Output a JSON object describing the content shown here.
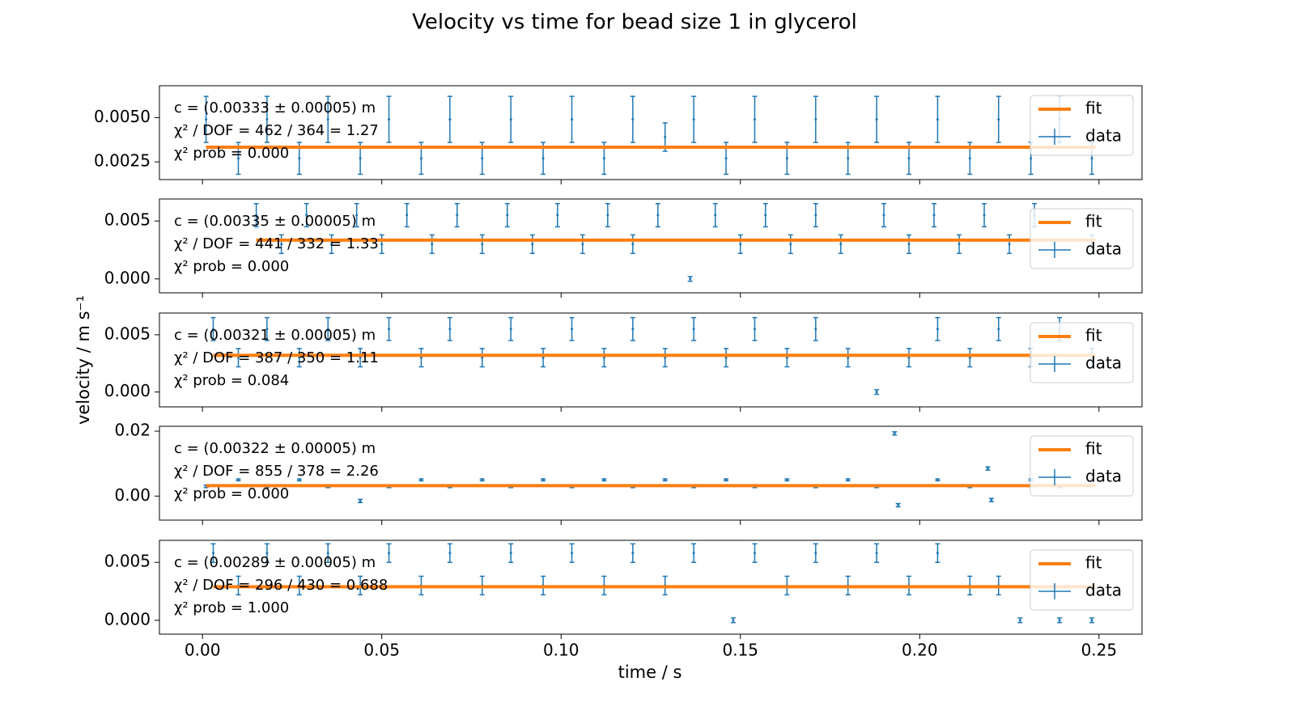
{
  "figure": {
    "title": "Velocity vs time for bead size 1 in glycerol",
    "xlabel": "time / s",
    "ylabel": "velocity / m s⁻¹"
  },
  "chart_data": [
    {
      "type": "errorbar",
      "legend": "upper right",
      "annotations": [
        "c = (0.00333 ± 0.00005) m",
        "χ² / DOF = 462 / 364 = 1.27",
        "χ² prob = 0.000"
      ],
      "xlim": [
        -0.012,
        0.262
      ],
      "xticks": [
        {
          "value": 0,
          "label": "0.00"
        },
        {
          "value": 0.05,
          "label": "0.05"
        },
        {
          "value": 0.1,
          "label": "0.10"
        },
        {
          "value": 0.15,
          "label": "0.15"
        },
        {
          "value": 0.2,
          "label": "0.20"
        },
        {
          "value": 0.25,
          "label": "0.25"
        }
      ],
      "ylim": [
        0.0015,
        0.0068
      ],
      "yticks": [
        {
          "value": 0.0025,
          "label": "0.0025"
        },
        {
          "value": 0.005,
          "label": "0.0050"
        }
      ],
      "series": [
        {
          "name": "data",
          "color": "#1f77b4",
          "x": [
            0.001,
            0.01,
            0.018,
            0.027,
            0.035,
            0.044,
            0.052,
            0.061,
            0.069,
            0.078,
            0.086,
            0.095,
            0.103,
            0.112,
            0.12,
            0.129,
            0.137,
            0.146,
            0.154,
            0.163,
            0.171,
            0.18,
            0.188,
            0.197,
            0.205,
            0.214,
            0.222,
            0.231,
            0.239,
            0.248
          ],
          "values": [
            0.0049,
            0.0027,
            0.0049,
            0.0027,
            0.0049,
            0.0027,
            0.0049,
            0.0027,
            0.0049,
            0.0027,
            0.0049,
            0.0027,
            0.0049,
            0.0027,
            0.0049,
            0.0039,
            0.0049,
            0.0027,
            0.0049,
            0.0027,
            0.0049,
            0.0027,
            0.0049,
            0.0027,
            0.0049,
            0.0027,
            0.0049,
            0.0027,
            0.0049,
            0.0027
          ],
          "errors": [
            0.0013,
            0.0009,
            0.0013,
            0.0009,
            0.0013,
            0.0009,
            0.0013,
            0.0009,
            0.0013,
            0.0009,
            0.0013,
            0.0009,
            0.0013,
            0.0009,
            0.0013,
            0.0008,
            0.0013,
            0.0009,
            0.0013,
            0.0009,
            0.0013,
            0.0009,
            0.0013,
            0.0009,
            0.0013,
            0.0009,
            0.0013,
            0.0009,
            0.0013,
            0.0009
          ]
        },
        {
          "name": "fit",
          "color": "#ff7f0e",
          "x": [
            0.001,
            0.249
          ],
          "values": [
            0.00333,
            0.00333
          ]
        }
      ]
    },
    {
      "type": "errorbar",
      "legend": "upper right",
      "annotations": [
        "c = (0.00335 ± 0.00005) m",
        "χ² / DOF = 441 / 332 = 1.33",
        "χ² prob = 0.000"
      ],
      "xlim": [
        -0.012,
        0.262
      ],
      "xticks": [
        {
          "value": 0,
          "label": "0.00"
        },
        {
          "value": 0.05,
          "label": "0.05"
        },
        {
          "value": 0.1,
          "label": "0.10"
        },
        {
          "value": 0.15,
          "label": "0.15"
        },
        {
          "value": 0.2,
          "label": "0.20"
        },
        {
          "value": 0.25,
          "label": "0.25"
        }
      ],
      "ylim": [
        -0.0012,
        0.0069
      ],
      "yticks": [
        {
          "value": 0,
          "label": "0.000"
        },
        {
          "value": 0.005,
          "label": "0.005"
        }
      ],
      "series": [
        {
          "name": "data",
          "color": "#1f77b4",
          "x": [
            0.015,
            0.022,
            0.029,
            0.036,
            0.043,
            0.05,
            0.057,
            0.064,
            0.071,
            0.078,
            0.085,
            0.092,
            0.099,
            0.106,
            0.113,
            0.12,
            0.127,
            0.136,
            0.143,
            0.15,
            0.157,
            0.164,
            0.171,
            0.178,
            0.19,
            0.197,
            0.204,
            0.211,
            0.218,
            0.225,
            0.232,
            0.248
          ],
          "values": [
            0.0055,
            0.003,
            0.0055,
            0.003,
            0.0055,
            0.003,
            0.0055,
            0.003,
            0.0055,
            0.003,
            0.0055,
            0.003,
            0.0055,
            0.003,
            0.0055,
            0.003,
            0.0055,
            0.0,
            0.0055,
            0.003,
            0.0055,
            0.003,
            0.0055,
            0.003,
            0.0055,
            0.003,
            0.0055,
            0.003,
            0.0055,
            0.003,
            0.0055,
            0.003
          ],
          "errors": [
            0.001,
            0.0008,
            0.001,
            0.0008,
            0.001,
            0.0008,
            0.001,
            0.0008,
            0.001,
            0.0008,
            0.001,
            0.0008,
            0.001,
            0.0008,
            0.001,
            0.0008,
            0.001,
            0.0002,
            0.001,
            0.0008,
            0.001,
            0.0008,
            0.001,
            0.0008,
            0.001,
            0.0008,
            0.001,
            0.0008,
            0.001,
            0.0008,
            0.001,
            0.0008
          ]
        },
        {
          "name": "fit",
          "color": "#ff7f0e",
          "x": [
            0.015,
            0.249
          ],
          "values": [
            0.00335,
            0.00335
          ]
        }
      ]
    },
    {
      "type": "errorbar",
      "legend": "upper right",
      "annotations": [
        "c = (0.00321 ± 0.00005) m",
        "χ² / DOF = 387 / 350 = 1.11",
        "χ² prob = 0.084"
      ],
      "xlim": [
        -0.012,
        0.262
      ],
      "xticks": [
        {
          "value": 0,
          "label": "0.00"
        },
        {
          "value": 0.05,
          "label": "0.05"
        },
        {
          "value": 0.1,
          "label": "0.10"
        },
        {
          "value": 0.15,
          "label": "0.15"
        },
        {
          "value": 0.2,
          "label": "0.20"
        },
        {
          "value": 0.25,
          "label": "0.25"
        }
      ],
      "ylim": [
        -0.0013,
        0.0069
      ],
      "yticks": [
        {
          "value": 0,
          "label": "0.000"
        },
        {
          "value": 0.005,
          "label": "0.005"
        }
      ],
      "series": [
        {
          "name": "data",
          "color": "#1f77b4",
          "x": [
            0.003,
            0.01,
            0.018,
            0.027,
            0.035,
            0.044,
            0.052,
            0.061,
            0.069,
            0.078,
            0.086,
            0.095,
            0.103,
            0.112,
            0.12,
            0.129,
            0.137,
            0.146,
            0.154,
            0.163,
            0.171,
            0.18,
            0.188,
            0.197,
            0.205,
            0.214,
            0.222,
            0.231,
            0.239,
            0.248
          ],
          "values": [
            0.0055,
            0.003,
            0.0055,
            0.003,
            0.0055,
            0.003,
            0.0055,
            0.003,
            0.0055,
            0.003,
            0.0055,
            0.003,
            0.0055,
            0.003,
            0.0055,
            0.003,
            0.0055,
            0.003,
            0.0055,
            0.003,
            0.0055,
            0.003,
            0.0,
            0.003,
            0.0055,
            0.003,
            0.0055,
            0.003,
            0.0055,
            0.003
          ],
          "errors": [
            0.001,
            0.0008,
            0.001,
            0.0008,
            0.001,
            0.0008,
            0.001,
            0.0008,
            0.001,
            0.0008,
            0.001,
            0.0008,
            0.001,
            0.0008,
            0.001,
            0.0008,
            0.001,
            0.0008,
            0.001,
            0.0008,
            0.001,
            0.0008,
            0.0002,
            0.0008,
            0.001,
            0.0008,
            0.001,
            0.0008,
            0.001,
            0.0008
          ]
        },
        {
          "name": "fit",
          "color": "#ff7f0e",
          "x": [
            0.003,
            0.249
          ],
          "values": [
            0.00321,
            0.00321
          ]
        }
      ]
    },
    {
      "type": "errorbar",
      "legend": "upper right",
      "annotations": [
        "c = (0.00322 ± 0.00005) m",
        "χ² / DOF = 855 / 378 = 2.26",
        "χ² prob = 0.000"
      ],
      "xlim": [
        -0.012,
        0.262
      ],
      "xticks": [
        {
          "value": 0,
          "label": "0.00"
        },
        {
          "value": 0.05,
          "label": "0.05"
        },
        {
          "value": 0.1,
          "label": "0.10"
        },
        {
          "value": 0.15,
          "label": "0.15"
        },
        {
          "value": 0.2,
          "label": "0.20"
        },
        {
          "value": 0.25,
          "label": "0.25"
        }
      ],
      "ylim": [
        -0.0074,
        0.0215
      ],
      "yticks": [
        {
          "value": 0,
          "label": "0.00"
        },
        {
          "value": 0.02,
          "label": "0.02"
        }
      ],
      "series": [
        {
          "name": "data",
          "color": "#1f77b4",
          "x": [
            0.001,
            0.01,
            0.018,
            0.027,
            0.035,
            0.044,
            0.052,
            0.061,
            0.069,
            0.078,
            0.086,
            0.095,
            0.103,
            0.112,
            0.12,
            0.129,
            0.137,
            0.146,
            0.154,
            0.163,
            0.171,
            0.18,
            0.188,
            0.193,
            0.194,
            0.205,
            0.214,
            0.219,
            0.22,
            0.231,
            0.239,
            0.248
          ],
          "values": [
            0.003,
            0.005,
            0.003,
            0.005,
            0.003,
            -0.0015,
            0.003,
            0.005,
            0.003,
            0.005,
            0.003,
            0.005,
            0.003,
            0.005,
            0.003,
            0.005,
            0.003,
            0.005,
            0.003,
            0.005,
            0.003,
            0.005,
            0.003,
            0.0193,
            -0.0028,
            0.005,
            0.003,
            0.0085,
            -0.0012,
            0.005,
            0.003,
            0.005
          ],
          "errors": [
            0.0004,
            0.0003,
            0.0004,
            0.0003,
            0.0004,
            0.0005,
            0.0004,
            0.0003,
            0.0004,
            0.0003,
            0.0004,
            0.0003,
            0.0004,
            0.0003,
            0.0004,
            0.0003,
            0.0004,
            0.0003,
            0.0004,
            0.0003,
            0.0004,
            0.0003,
            0.0004,
            0.0005,
            0.0005,
            0.0003,
            0.0004,
            0.0005,
            0.0005,
            0.0003,
            0.0004,
            0.0003
          ]
        },
        {
          "name": "fit",
          "color": "#ff7f0e",
          "x": [
            0.001,
            0.249
          ],
          "values": [
            0.00322,
            0.00322
          ]
        }
      ]
    },
    {
      "type": "errorbar",
      "legend": "upper right",
      "annotations": [
        "c = (0.00289 ± 0.00005) m",
        "χ² / DOF = 296 / 430 = 0.688",
        "χ² prob = 1.000"
      ],
      "xlim": [
        -0.012,
        0.262
      ],
      "xticks": [
        {
          "value": 0,
          "label": "0.00"
        },
        {
          "value": 0.05,
          "label": "0.05"
        },
        {
          "value": 0.1,
          "label": "0.10"
        },
        {
          "value": 0.15,
          "label": "0.15"
        },
        {
          "value": 0.2,
          "label": "0.20"
        },
        {
          "value": 0.25,
          "label": "0.25"
        }
      ],
      "ylim": [
        -0.0012,
        0.0069
      ],
      "yticks": [
        {
          "value": 0,
          "label": "0.000"
        },
        {
          "value": 0.005,
          "label": "0.005"
        }
      ],
      "series": [
        {
          "name": "data",
          "color": "#1f77b4",
          "x": [
            0.003,
            0.01,
            0.018,
            0.027,
            0.035,
            0.044,
            0.052,
            0.061,
            0.069,
            0.078,
            0.086,
            0.095,
            0.103,
            0.112,
            0.12,
            0.129,
            0.137,
            0.148,
            0.154,
            0.163,
            0.171,
            0.18,
            0.188,
            0.197,
            0.205,
            0.214,
            0.222,
            0.228,
            0.239,
            0.248
          ],
          "values": [
            0.0058,
            0.003,
            0.0058,
            0.003,
            0.0058,
            0.003,
            0.0058,
            0.003,
            0.0058,
            0.003,
            0.0058,
            0.003,
            0.0058,
            0.003,
            0.0058,
            0.003,
            0.0058,
            0.0,
            0.0058,
            0.003,
            0.0058,
            0.003,
            0.0058,
            0.003,
            0.0058,
            0.003,
            0.003,
            0.0,
            0.0,
            0.0
          ],
          "errors": [
            0.0008,
            0.0008,
            0.0008,
            0.0008,
            0.0008,
            0.0008,
            0.0008,
            0.0008,
            0.0008,
            0.0008,
            0.0008,
            0.0008,
            0.0008,
            0.0008,
            0.0008,
            0.0008,
            0.0008,
            0.0002,
            0.0008,
            0.0008,
            0.0008,
            0.0008,
            0.0008,
            0.0008,
            0.0008,
            0.0008,
            0.0008,
            0.0002,
            0.0002,
            0.0002
          ]
        },
        {
          "name": "fit",
          "color": "#ff7f0e",
          "x": [
            0.003,
            0.249
          ],
          "values": [
            0.00289,
            0.00289
          ]
        }
      ]
    }
  ]
}
